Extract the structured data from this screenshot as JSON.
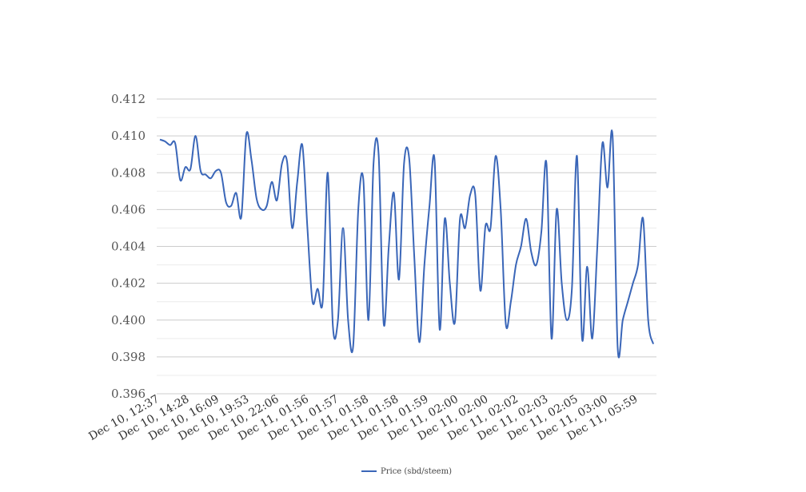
{
  "chart_data": {
    "type": "line",
    "title": "",
    "xlabel": "",
    "ylabel": "",
    "ylim": [
      0.396,
      0.412
    ],
    "yticks": [
      "0.396",
      "0.398",
      "0.400",
      "0.402",
      "0.404",
      "0.406",
      "0.408",
      "0.410",
      "0.412"
    ],
    "x_tick_labels": [
      "Dec 10, 12:37",
      "Dec 10, 14:28",
      "Dec 10, 16:09",
      "Dec 10, 19:53",
      "Dec 10, 22:06",
      "Dec 11, 01:56",
      "Dec 11, 01:57",
      "Dec 11, 01:58",
      "Dec 11, 01:58",
      "Dec 11, 01:59",
      "Dec 11, 02:00",
      "Dec 11, 02:00",
      "Dec 11, 02:02",
      "Dec 11, 02:03",
      "Dec 11, 02:05",
      "Dec 11, 03:00",
      "Dec 11, 05:59"
    ],
    "grid": true,
    "legend_position": "bottom",
    "series": [
      {
        "name": "Price (sbd/steem)",
        "color": "#3a66b8",
        "values": [
          0.4098,
          0.4097,
          0.4095,
          0.4096,
          0.4076,
          0.4083,
          0.4082,
          0.41,
          0.4081,
          0.4079,
          0.4077,
          0.4081,
          0.408,
          0.4064,
          0.4062,
          0.4069,
          0.4056,
          0.4101,
          0.4087,
          0.4066,
          0.406,
          0.4062,
          0.4075,
          0.4065,
          0.4085,
          0.4086,
          0.405,
          0.4075,
          0.4095,
          0.405,
          0.401,
          0.4017,
          0.401,
          0.408,
          0.3997,
          0.4,
          0.405,
          0.4,
          0.3986,
          0.406,
          0.4076,
          0.4,
          0.4085,
          0.409,
          0.3998,
          0.404,
          0.4069,
          0.4022,
          0.4085,
          0.4088,
          0.4035,
          0.3988,
          0.403,
          0.4062,
          0.4087,
          0.3995,
          0.4055,
          0.402,
          0.3999,
          0.4055,
          0.405,
          0.4068,
          0.4068,
          0.4016,
          0.4051,
          0.405,
          0.4089,
          0.406,
          0.3998,
          0.401,
          0.403,
          0.404,
          0.4055,
          0.4037,
          0.403,
          0.4048,
          0.4085,
          0.399,
          0.406,
          0.402,
          0.4,
          0.4017,
          0.4089,
          0.399,
          0.4029,
          0.399,
          0.404,
          0.4096,
          0.4072,
          0.41,
          0.3985,
          0.4,
          0.401,
          0.402,
          0.403,
          0.4055,
          0.4,
          0.3987
        ]
      }
    ]
  }
}
